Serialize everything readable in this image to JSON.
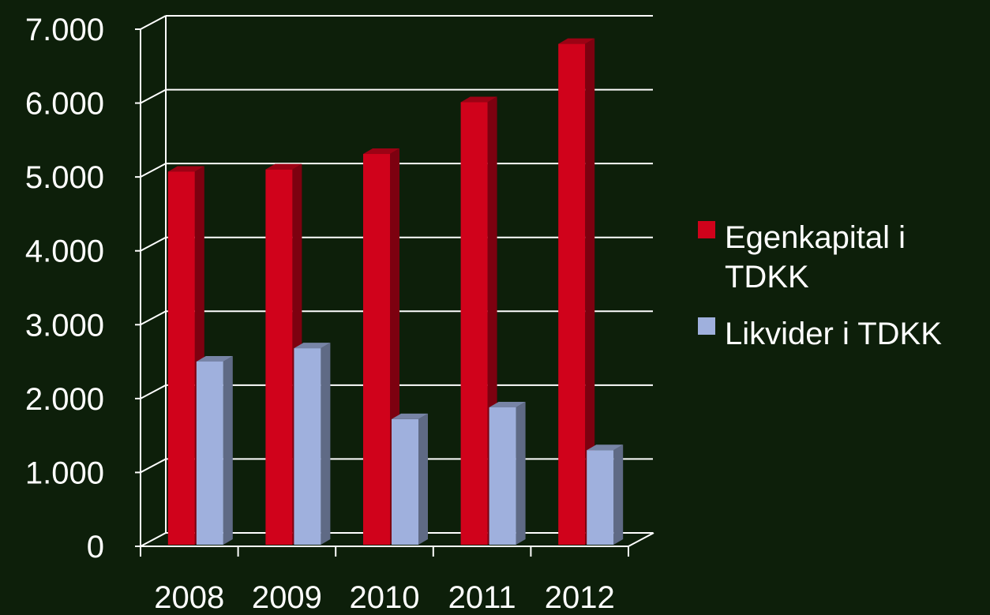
{
  "chart_data": {
    "type": "bar",
    "categories": [
      "2008",
      "2009",
      "2010",
      "2011",
      "2012"
    ],
    "series": [
      {
        "name": "Egenkapital i TDKK",
        "legend_lines": [
          "Egenkapital i",
          "TDKK"
        ],
        "color": "#d0021b",
        "values": [
          5050,
          5080,
          5290,
          5990,
          6780
        ]
      },
      {
        "name": "Likvider i TDKK",
        "legend_lines": [
          "Likvider i TDKK"
        ],
        "color": "#9fb0dd",
        "values": [
          2480,
          2660,
          1700,
          1860,
          1280
        ]
      }
    ],
    "y_ticks": [
      "0",
      "1.000",
      "2.000",
      "3.000",
      "4.000",
      "5.000",
      "6.000",
      "7.000"
    ],
    "ylim": [
      0,
      7000
    ],
    "grid": true,
    "legend_position": "right",
    "title": "",
    "xlabel": "",
    "ylabel": ""
  },
  "colors": {
    "background": "#0d1f0a",
    "axis": "#ffffff",
    "text": "#ffffff"
  }
}
